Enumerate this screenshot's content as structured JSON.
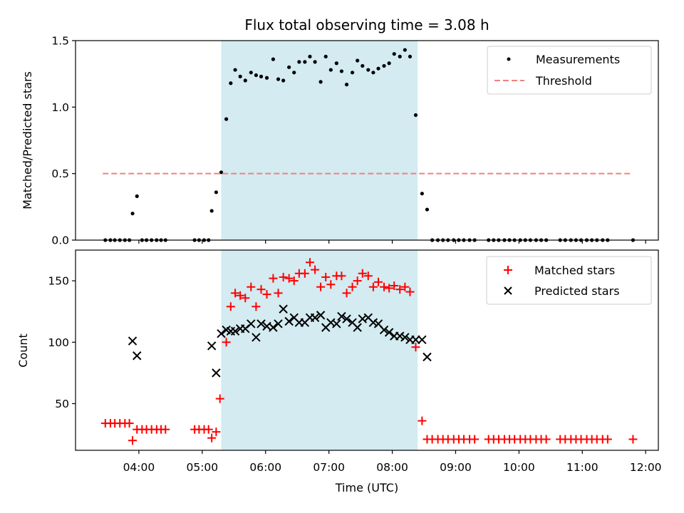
{
  "chart_data": {
    "title": "Flux total observing time = 3.08 h",
    "xlabel": "Time (UTC)",
    "x_tick_labels": [
      "04:00",
      "05:00",
      "06:00",
      "07:00",
      "08:00",
      "09:00",
      "10:00",
      "11:00",
      "12:00"
    ],
    "x_tick_hours": [
      4,
      5,
      6,
      7,
      8,
      9,
      10,
      11,
      12
    ],
    "xlim_hours": [
      3.0,
      12.2
    ],
    "shaded_span_hours": [
      5.3,
      8.4
    ],
    "colors": {
      "shade": "#d3ebf1",
      "matched": "#ff0000",
      "predicted": "#000000",
      "threshold": "#f08080",
      "measurement": "#000000"
    },
    "panels": [
      {
        "type": "scatter",
        "ylabel": "Matched/Predicted stars",
        "ylim": [
          0,
          1.5
        ],
        "yticks": [
          0,
          0.5,
          1.0,
          1.5
        ],
        "ytick_labels": [
          "0.0",
          "0.5",
          "1.0",
          "1.5"
        ],
        "legend_position": "upper-right",
        "series": [
          {
            "name": "Measurements",
            "marker": "dot",
            "points": [
              [
                3.47,
                0
              ],
              [
                3.55,
                0
              ],
              [
                3.62,
                0
              ],
              [
                3.7,
                0
              ],
              [
                3.78,
                0
              ],
              [
                3.85,
                0
              ],
              [
                3.9,
                0.2
              ],
              [
                3.97,
                0.33
              ],
              [
                4.05,
                0
              ],
              [
                4.12,
                0
              ],
              [
                4.2,
                0
              ],
              [
                4.28,
                0
              ],
              [
                4.35,
                0
              ],
              [
                4.42,
                0
              ],
              [
                4.88,
                0
              ],
              [
                4.95,
                0
              ],
              [
                5.03,
                0
              ],
              [
                5.1,
                0
              ],
              [
                5.15,
                0.22
              ],
              [
                5.22,
                0.36
              ],
              [
                5.3,
                0.51
              ],
              [
                5.38,
                0.91
              ],
              [
                5.45,
                1.18
              ],
              [
                5.52,
                1.28
              ],
              [
                5.6,
                1.23
              ],
              [
                5.68,
                1.2
              ],
              [
                5.77,
                1.26
              ],
              [
                5.85,
                1.24
              ],
              [
                5.93,
                1.23
              ],
              [
                6.02,
                1.22
              ],
              [
                6.12,
                1.36
              ],
              [
                6.2,
                1.21
              ],
              [
                6.28,
                1.2
              ],
              [
                6.37,
                1.3
              ],
              [
                6.45,
                1.26
              ],
              [
                6.53,
                1.34
              ],
              [
                6.62,
                1.34
              ],
              [
                6.7,
                1.38
              ],
              [
                6.78,
                1.34
              ],
              [
                6.87,
                1.19
              ],
              [
                6.95,
                1.38
              ],
              [
                7.03,
                1.28
              ],
              [
                7.12,
                1.33
              ],
              [
                7.2,
                1.27
              ],
              [
                7.28,
                1.17
              ],
              [
                7.37,
                1.26
              ],
              [
                7.45,
                1.35
              ],
              [
                7.53,
                1.31
              ],
              [
                7.62,
                1.28
              ],
              [
                7.7,
                1.26
              ],
              [
                7.78,
                1.29
              ],
              [
                7.87,
                1.31
              ],
              [
                7.95,
                1.33
              ],
              [
                8.03,
                1.4
              ],
              [
                8.12,
                1.38
              ],
              [
                8.2,
                1.43
              ],
              [
                8.28,
                1.38
              ],
              [
                8.37,
                0.94
              ],
              [
                8.47,
                0.35
              ],
              [
                8.55,
                0.23
              ],
              [
                8.63,
                0
              ],
              [
                8.72,
                0
              ],
              [
                8.8,
                0
              ],
              [
                8.88,
                0
              ],
              [
                8.97,
                0
              ],
              [
                9.05,
                0
              ],
              [
                9.13,
                0
              ],
              [
                9.22,
                0
              ],
              [
                9.3,
                0
              ],
              [
                9.52,
                0
              ],
              [
                9.6,
                0
              ],
              [
                9.68,
                0
              ],
              [
                9.77,
                0
              ],
              [
                9.85,
                0
              ],
              [
                9.93,
                0
              ],
              [
                10.02,
                0
              ],
              [
                10.1,
                0
              ],
              [
                10.18,
                0
              ],
              [
                10.27,
                0
              ],
              [
                10.35,
                0
              ],
              [
                10.43,
                0
              ],
              [
                10.65,
                0
              ],
              [
                10.73,
                0
              ],
              [
                10.82,
                0
              ],
              [
                10.9,
                0
              ],
              [
                10.98,
                0
              ],
              [
                11.07,
                0
              ],
              [
                11.15,
                0
              ],
              [
                11.23,
                0
              ],
              [
                11.32,
                0
              ],
              [
                11.4,
                0
              ],
              [
                11.8,
                0
              ]
            ]
          },
          {
            "name": "Threshold",
            "marker": "dashed-line",
            "points": [
              [
                3.43,
                0.5
              ],
              [
                11.77,
                0.5
              ]
            ]
          }
        ]
      },
      {
        "type": "scatter",
        "ylabel": "Count",
        "ylim": [
          12,
          175
        ],
        "yticks": [
          50,
          100,
          150
        ],
        "ytick_labels": [
          "50",
          "100",
          "150"
        ],
        "legend_position": "upper-right",
        "series": [
          {
            "name": "Matched stars",
            "marker": "plus",
            "points": [
              [
                3.47,
                34
              ],
              [
                3.55,
                34
              ],
              [
                3.62,
                34
              ],
              [
                3.7,
                34
              ],
              [
                3.78,
                34
              ],
              [
                3.85,
                34
              ],
              [
                3.9,
                20
              ],
              [
                3.97,
                29
              ],
              [
                4.05,
                29
              ],
              [
                4.12,
                29
              ],
              [
                4.2,
                29
              ],
              [
                4.28,
                29
              ],
              [
                4.35,
                29
              ],
              [
                4.42,
                29
              ],
              [
                4.88,
                29
              ],
              [
                4.95,
                29
              ],
              [
                5.03,
                29
              ],
              [
                5.1,
                29
              ],
              [
                5.15,
                22
              ],
              [
                5.22,
                27
              ],
              [
                5.28,
                54
              ],
              [
                5.38,
                100
              ],
              [
                5.45,
                129
              ],
              [
                5.52,
                140
              ],
              [
                5.6,
                138
              ],
              [
                5.68,
                136
              ],
              [
                5.77,
                145
              ],
              [
                5.85,
                129
              ],
              [
                5.93,
                143
              ],
              [
                6.02,
                139
              ],
              [
                6.12,
                152
              ],
              [
                6.2,
                140
              ],
              [
                6.28,
                153
              ],
              [
                6.37,
                152
              ],
              [
                6.45,
                150
              ],
              [
                6.53,
                156
              ],
              [
                6.62,
                156
              ],
              [
                6.7,
                165
              ],
              [
                6.78,
                159
              ],
              [
                6.87,
                145
              ],
              [
                6.95,
                153
              ],
              [
                7.03,
                147
              ],
              [
                7.12,
                154
              ],
              [
                7.2,
                154
              ],
              [
                7.28,
                140
              ],
              [
                7.37,
                145
              ],
              [
                7.45,
                150
              ],
              [
                7.53,
                156
              ],
              [
                7.62,
                154
              ],
              [
                7.7,
                145
              ],
              [
                7.78,
                149
              ],
              [
                7.87,
                145
              ],
              [
                7.95,
                144
              ],
              [
                8.03,
                146
              ],
              [
                8.12,
                143
              ],
              [
                8.2,
                145
              ],
              [
                8.28,
                141
              ],
              [
                8.37,
                96
              ],
              [
                8.47,
                36
              ],
              [
                8.55,
                21
              ],
              [
                8.63,
                21
              ],
              [
                8.72,
                21
              ],
              [
                8.8,
                21
              ],
              [
                8.88,
                21
              ],
              [
                8.97,
                21
              ],
              [
                9.05,
                21
              ],
              [
                9.13,
                21
              ],
              [
                9.22,
                21
              ],
              [
                9.3,
                21
              ],
              [
                9.52,
                21
              ],
              [
                9.6,
                21
              ],
              [
                9.68,
                21
              ],
              [
                9.77,
                21
              ],
              [
                9.85,
                21
              ],
              [
                9.93,
                21
              ],
              [
                10.02,
                21
              ],
              [
                10.1,
                21
              ],
              [
                10.18,
                21
              ],
              [
                10.27,
                21
              ],
              [
                10.35,
                21
              ],
              [
                10.43,
                21
              ],
              [
                10.65,
                21
              ],
              [
                10.73,
                21
              ],
              [
                10.82,
                21
              ],
              [
                10.9,
                21
              ],
              [
                10.98,
                21
              ],
              [
                11.07,
                21
              ],
              [
                11.15,
                21
              ],
              [
                11.23,
                21
              ],
              [
                11.32,
                21
              ],
              [
                11.4,
                21
              ],
              [
                11.8,
                21
              ]
            ]
          },
          {
            "name": "Predicted stars",
            "marker": "x",
            "points": [
              [
                3.9,
                101
              ],
              [
                3.97,
                89
              ],
              [
                5.15,
                97
              ],
              [
                5.22,
                75
              ],
              [
                5.3,
                107
              ],
              [
                5.38,
                110
              ],
              [
                5.45,
                109
              ],
              [
                5.52,
                109
              ],
              [
                5.6,
                111
              ],
              [
                5.68,
                111
              ],
              [
                5.77,
                115
              ],
              [
                5.85,
                104
              ],
              [
                5.93,
                115
              ],
              [
                6.02,
                113
              ],
              [
                6.12,
                112
              ],
              [
                6.2,
                115
              ],
              [
                6.28,
                127
              ],
              [
                6.37,
                117
              ],
              [
                6.45,
                120
              ],
              [
                6.53,
                116
              ],
              [
                6.62,
                116
              ],
              [
                6.7,
                120
              ],
              [
                6.78,
                120
              ],
              [
                6.87,
                122
              ],
              [
                6.95,
                112
              ],
              [
                7.03,
                116
              ],
              [
                7.12,
                115
              ],
              [
                7.2,
                121
              ],
              [
                7.28,
                119
              ],
              [
                7.37,
                116
              ],
              [
                7.45,
                112
              ],
              [
                7.53,
                119
              ],
              [
                7.62,
                120
              ],
              [
                7.7,
                116
              ],
              [
                7.78,
                115
              ],
              [
                7.87,
                110
              ],
              [
                7.95,
                108
              ],
              [
                8.03,
                105
              ],
              [
                8.12,
                105
              ],
              [
                8.2,
                104
              ],
              [
                8.28,
                102
              ],
              [
                8.37,
                102
              ],
              [
                8.47,
                102
              ],
              [
                8.55,
                88
              ]
            ]
          }
        ]
      }
    ]
  }
}
